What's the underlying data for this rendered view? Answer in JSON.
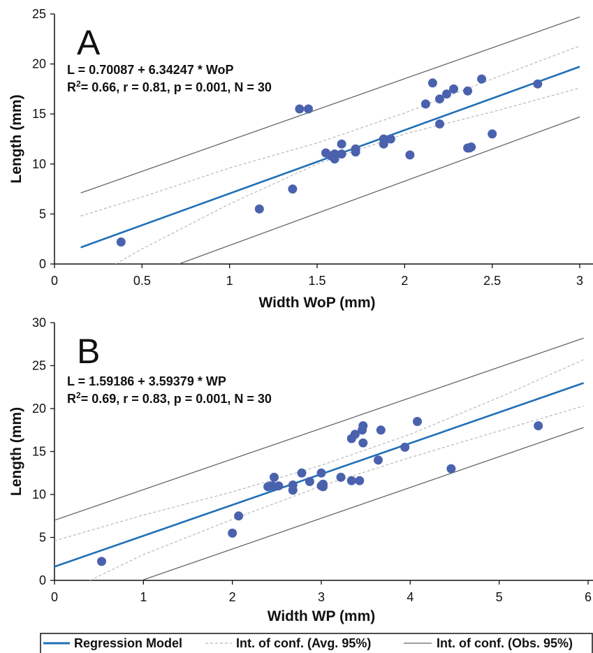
{
  "colors": {
    "regression": "#1f6fb6",
    "avg_ci": "#b8b8b8",
    "obs_ci": "#666666",
    "point": "#4a62ad",
    "axis": "#111111"
  },
  "legend": {
    "regression": "Regression Model",
    "avg": "Int. of conf. (Avg. 95%)",
    "obs": "Int. of conf. (Obs. 95%)"
  },
  "chart_data": [
    {
      "type": "scatter",
      "panel": "A",
      "equation": "L = 0.70087 + 6.34247 * WoP",
      "stats_prefix": "R",
      "stats_sup": "2",
      "stats_rest": "= 0.66, r = 0.81, p = 0.001, N = 30",
      "xlabel": "Width WoP (mm)",
      "ylabel": "Length (mm)",
      "xlim": [
        0,
        3
      ],
      "ylim": [
        0,
        25
      ],
      "xticks": [
        "0",
        "0.5",
        "1",
        "1.5",
        "2",
        "2.5",
        "3"
      ],
      "yticks": [
        "0",
        "5",
        "10",
        "15",
        "20",
        "25"
      ],
      "regression": {
        "intercept": 0.70087,
        "slope": 6.34247,
        "x_range": [
          0.15,
          3.0
        ]
      },
      "avg_ci_upper": [
        [
          0.15,
          4.8
        ],
        [
          0.5,
          6.7
        ],
        [
          1.0,
          9.6
        ],
        [
          1.5,
          12.1
        ],
        [
          2.0,
          15.1
        ],
        [
          2.5,
          18.5
        ],
        [
          3.0,
          21.8
        ]
      ],
      "avg_ci_lower": [
        [
          0.35,
          0.0
        ],
        [
          0.5,
          1.5
        ],
        [
          1.0,
          6.0
        ],
        [
          1.5,
          10.0
        ],
        [
          2.0,
          13.0
        ],
        [
          2.5,
          15.2
        ],
        [
          3.0,
          17.6
        ]
      ],
      "obs_ci_upper": [
        [
          0.15,
          7.1
        ],
        [
          3.0,
          24.7
        ]
      ],
      "obs_ci_lower": [
        [
          0.71,
          0.0
        ],
        [
          3.0,
          14.7
        ]
      ],
      "points": [
        [
          0.38,
          2.2
        ],
        [
          1.17,
          5.5
        ],
        [
          1.36,
          7.5
        ],
        [
          1.45,
          15.5
        ],
        [
          1.55,
          11.1
        ],
        [
          1.58,
          10.8
        ],
        [
          1.6,
          11.0
        ],
        [
          1.6,
          10.5
        ],
        [
          1.64,
          12.0
        ],
        [
          1.64,
          11.0
        ],
        [
          1.72,
          11.5
        ],
        [
          1.72,
          11.2
        ],
        [
          1.88,
          12.5
        ],
        [
          1.88,
          12.0
        ],
        [
          1.92,
          12.5
        ],
        [
          2.03,
          10.9
        ],
        [
          2.12,
          16.0
        ],
        [
          2.16,
          18.1
        ],
        [
          2.2,
          16.5
        ],
        [
          2.2,
          14.0
        ],
        [
          2.24,
          17.0
        ],
        [
          2.28,
          17.5
        ],
        [
          2.36,
          17.3
        ],
        [
          2.36,
          11.6
        ],
        [
          2.38,
          11.7
        ],
        [
          2.44,
          18.5
        ],
        [
          2.5,
          13.0
        ],
        [
          2.76,
          18.0
        ],
        [
          1.4,
          15.5
        ],
        [
          2.37,
          11.6
        ]
      ]
    },
    {
      "type": "scatter",
      "panel": "B",
      "equation": "L = 1.59186 + 3.59379 * WP",
      "stats_prefix": "R",
      "stats_sup": "2",
      "stats_rest": "= 0.69, r = 0.83, p = 0.001, N = 30",
      "xlabel": "Width WP (mm)",
      "ylabel": "Length (mm)",
      "xlim": [
        0,
        6
      ],
      "ylim": [
        0,
        30
      ],
      "xticks": [
        "0",
        "1",
        "2",
        "3",
        "4",
        "5",
        "6"
      ],
      "yticks": [
        "0",
        "5",
        "10",
        "15",
        "20",
        "25",
        "30"
      ],
      "regression": {
        "intercept": 1.59186,
        "slope": 3.59379,
        "x_range": [
          0.0,
          5.95
        ]
      },
      "avg_ci_upper": [
        [
          0.0,
          4.6
        ],
        [
          1.0,
          7.6
        ],
        [
          2.0,
          10.3
        ],
        [
          3.0,
          13.4
        ],
        [
          4.0,
          17.0
        ],
        [
          5.0,
          21.3
        ],
        [
          5.95,
          25.7
        ]
      ],
      "avg_ci_lower": [
        [
          0.4,
          0.0
        ],
        [
          1.0,
          3.0
        ],
        [
          2.0,
          7.1
        ],
        [
          3.0,
          11.0
        ],
        [
          4.0,
          14.3
        ],
        [
          5.0,
          17.4
        ],
        [
          5.95,
          20.3
        ]
      ],
      "obs_ci_upper": [
        [
          0.0,
          7.0
        ],
        [
          5.95,
          28.2
        ]
      ],
      "obs_ci_lower": [
        [
          0.98,
          0.0
        ],
        [
          5.95,
          17.8
        ]
      ],
      "points": [
        [
          0.53,
          2.2
        ],
        [
          2.0,
          5.5
        ],
        [
          2.07,
          7.5
        ],
        [
          2.4,
          10.9
        ],
        [
          2.43,
          11.0
        ],
        [
          2.47,
          12.0
        ],
        [
          2.52,
          11.0
        ],
        [
          2.68,
          11.1
        ],
        [
          2.68,
          10.5
        ],
        [
          2.78,
          12.5
        ],
        [
          2.87,
          11.5
        ],
        [
          3.0,
          12.5
        ],
        [
          3.02,
          11.2
        ],
        [
          3.02,
          10.9
        ],
        [
          3.22,
          12.0
        ],
        [
          3.34,
          16.5
        ],
        [
          3.34,
          11.6
        ],
        [
          3.38,
          17.0
        ],
        [
          3.43,
          11.6
        ],
        [
          3.46,
          17.5
        ],
        [
          3.47,
          18.0
        ],
        [
          3.47,
          16.0
        ],
        [
          3.64,
          14.0
        ],
        [
          3.67,
          17.5
        ],
        [
          3.94,
          15.5
        ],
        [
          4.08,
          18.5
        ],
        [
          4.46,
          13.0
        ],
        [
          5.44,
          18.0
        ],
        [
          2.45,
          11.0
        ],
        [
          3.0,
          11.0
        ]
      ]
    }
  ]
}
